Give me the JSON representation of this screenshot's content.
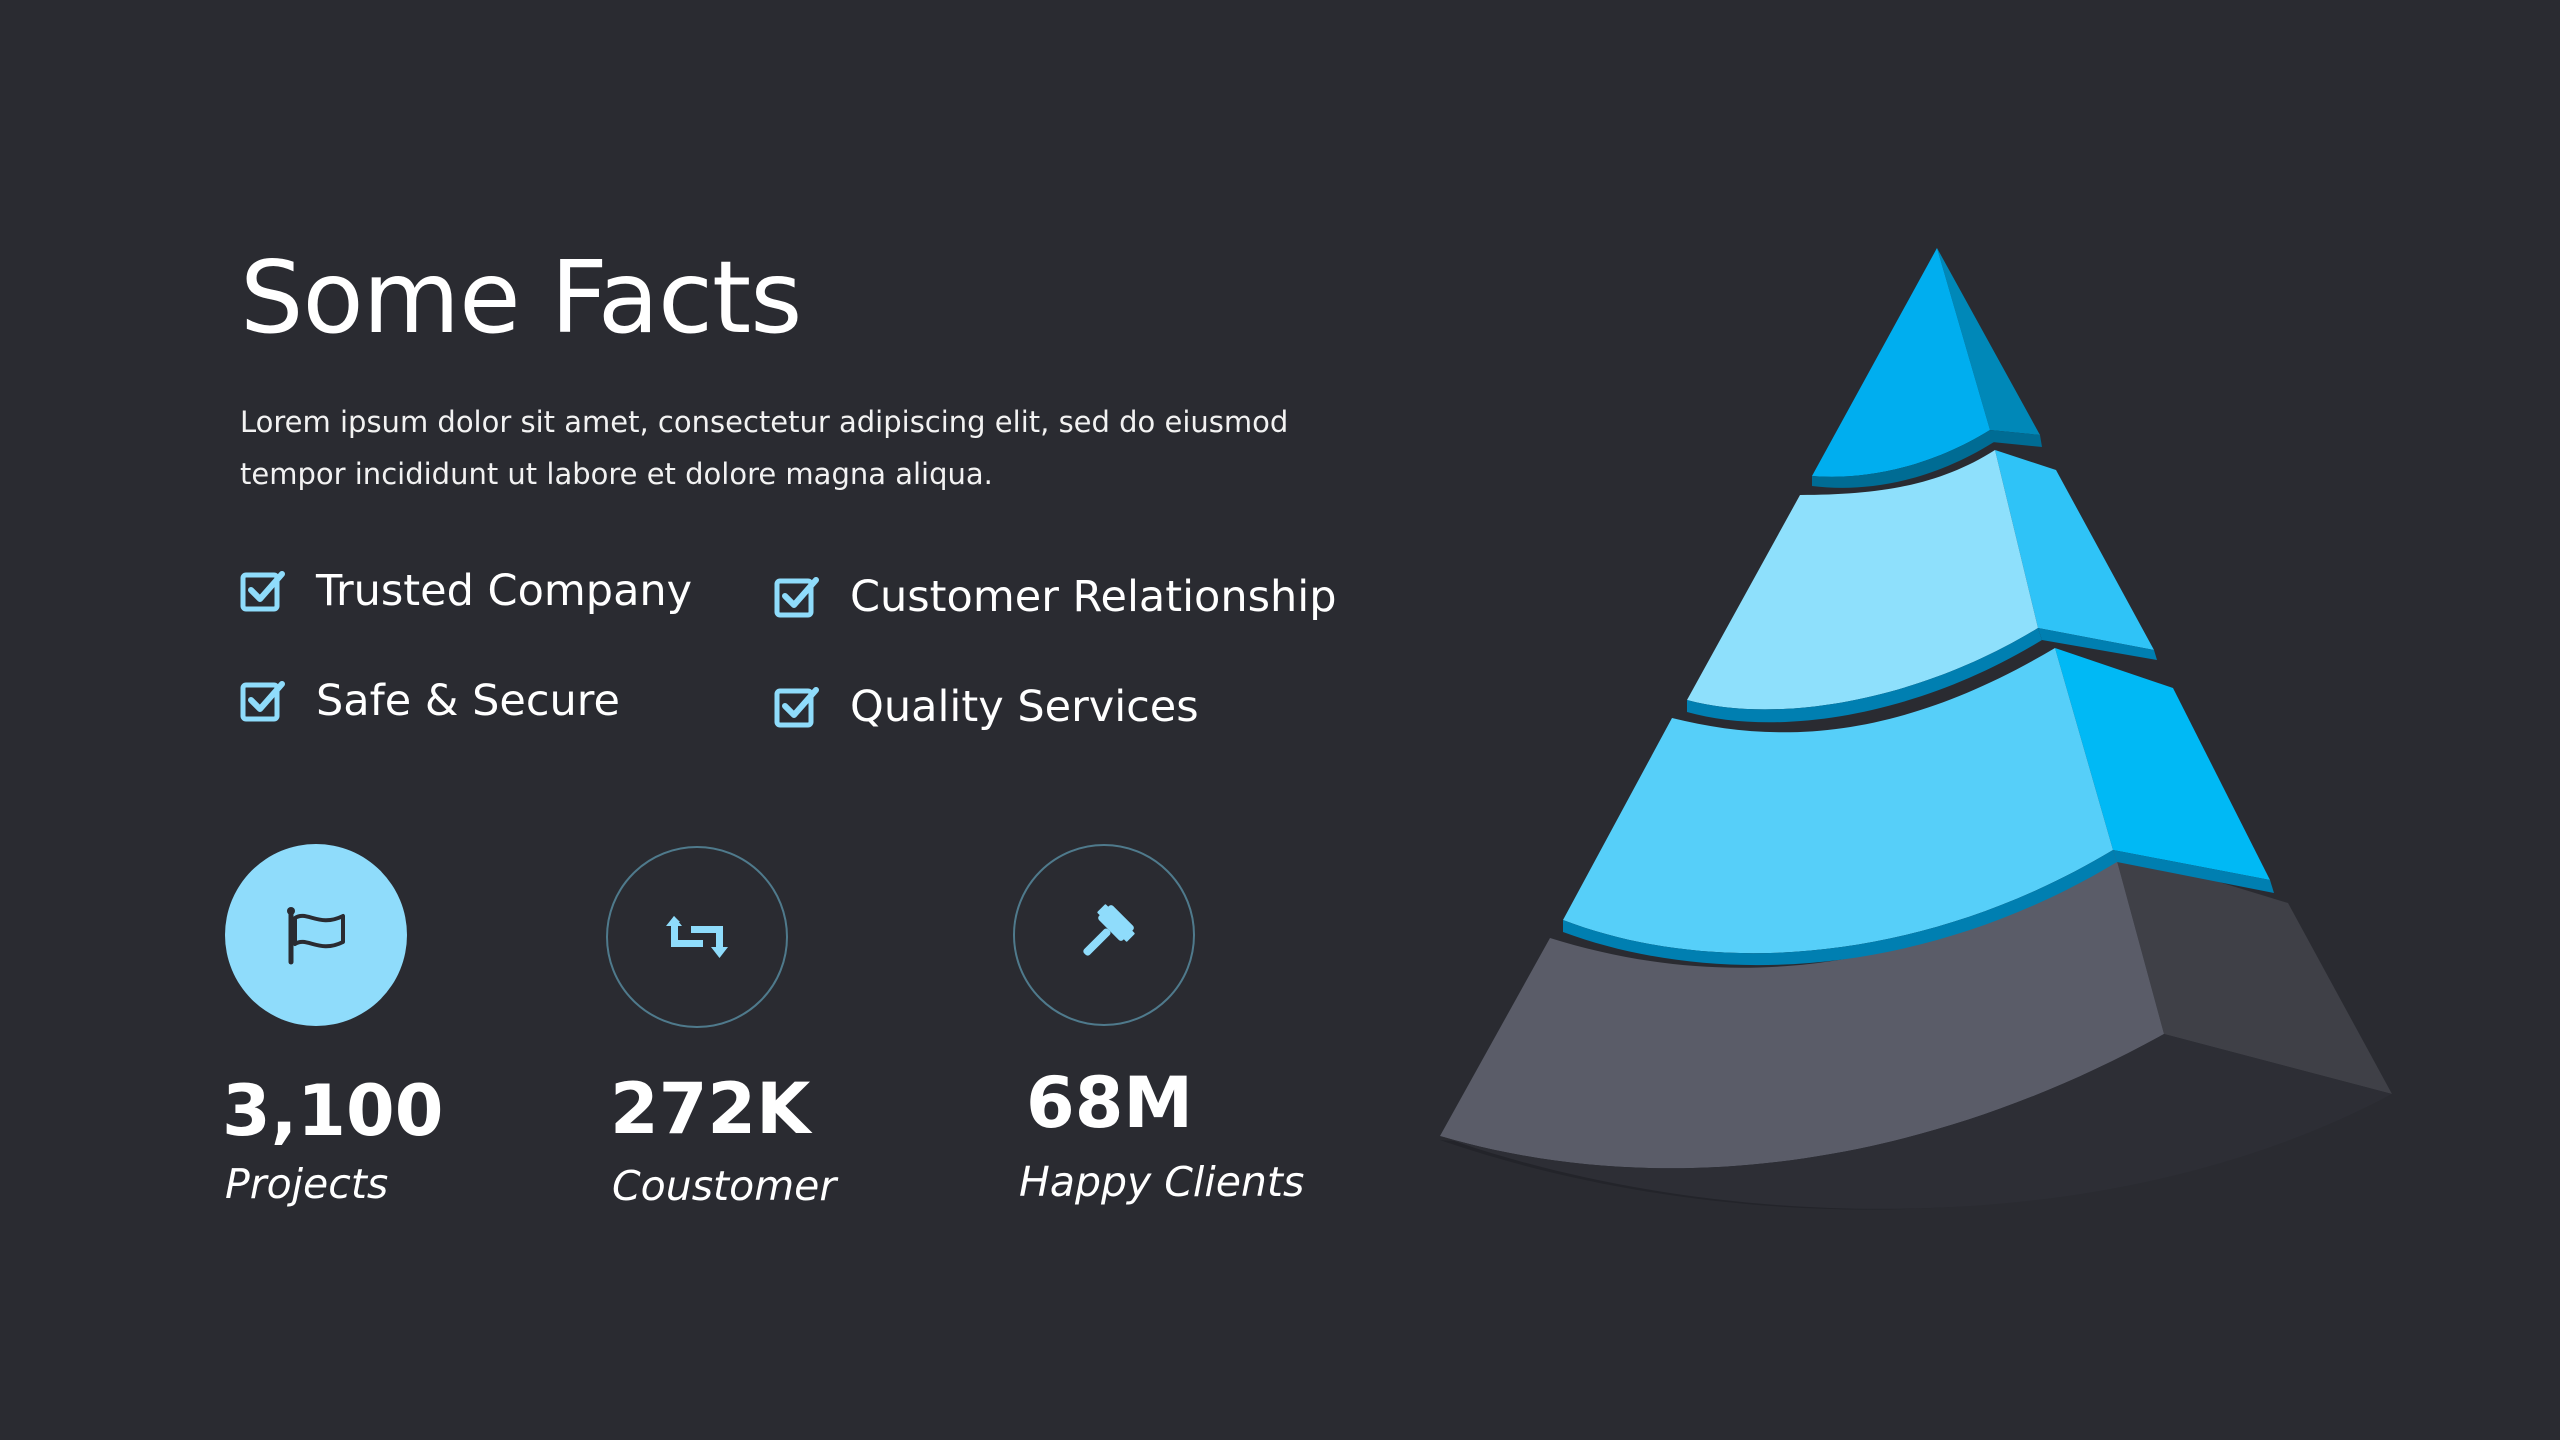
{
  "header": {
    "title": "Some Facts",
    "subtitle": "Lorem ipsum dolor sit amet, consectetur adipiscing elit, sed do eiusmod tempor incididunt ut labore et dolore magna aliqua."
  },
  "features": [
    {
      "label": "Trusted Company",
      "icon": "checkbox-icon"
    },
    {
      "label": "Safe & Secure",
      "icon": "checkbox-icon"
    },
    {
      "label": "Customer Relationship",
      "icon": "checkbox-icon"
    },
    {
      "label": "Quality Services",
      "icon": "checkbox-icon"
    }
  ],
  "stats": [
    {
      "value": "3,100",
      "label": "Projects",
      "icon": "flag-icon"
    },
    {
      "value": "272K",
      "label": "Coustomer",
      "icon": "repeat-icon"
    },
    {
      "value": "68M",
      "label": "Happy Clients",
      "icon": "gavel-icon"
    }
  ],
  "colors": {
    "background": "#2a2b31",
    "accent_light": "#8fdcfb",
    "accent_blue": "#00aeef",
    "tier_gray": "#5a5c68"
  }
}
